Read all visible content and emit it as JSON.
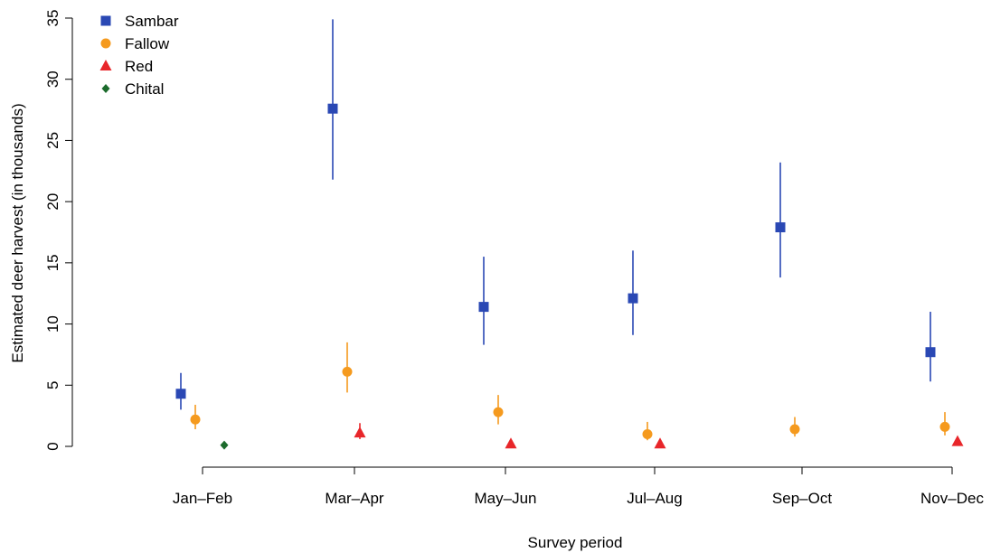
{
  "chart_data": {
    "type": "scatter",
    "title": "",
    "xlabel": "Survey period",
    "ylabel": "Estimated deer harvest (in thousands)",
    "ylim": [
      0,
      35
    ],
    "yticks": [
      "0",
      "5",
      "10",
      "15",
      "20",
      "25",
      "30",
      "35"
    ],
    "categories": [
      "Jan–Feb",
      "Mar–Apr",
      "May–Jun",
      "Jul–Aug",
      "Sep–Oct",
      "Nov–Dec"
    ],
    "grid": false,
    "legend_position": "top-left",
    "error_bars": true,
    "series": [
      {
        "name": "Sambar",
        "color": "#2a48b4",
        "marker": "square",
        "points": [
          {
            "category": "Jan–Feb",
            "value": 4.3,
            "low": 3.0,
            "high": 6.0
          },
          {
            "category": "Mar–Apr",
            "value": 27.6,
            "low": 21.8,
            "high": 34.9
          },
          {
            "category": "May–Jun",
            "value": 11.4,
            "low": 8.3,
            "high": 15.5
          },
          {
            "category": "Jul–Aug",
            "value": 12.1,
            "low": 9.1,
            "high": 16.0
          },
          {
            "category": "Sep–Oct",
            "value": 17.9,
            "low": 13.8,
            "high": 23.2
          },
          {
            "category": "Nov–Dec",
            "value": 7.7,
            "low": 5.3,
            "high": 11.0
          }
        ]
      },
      {
        "name": "Fallow",
        "color": "#f59a1e",
        "marker": "circle",
        "points": [
          {
            "category": "Jan–Feb",
            "value": 2.2,
            "low": 1.4,
            "high": 3.4
          },
          {
            "category": "Mar–Apr",
            "value": 6.1,
            "low": 4.4,
            "high": 8.5
          },
          {
            "category": "May–Jun",
            "value": 2.8,
            "low": 1.8,
            "high": 4.2
          },
          {
            "category": "Jul–Aug",
            "value": 1.0,
            "low": 0.5,
            "high": 2.0
          },
          {
            "category": "Sep–Oct",
            "value": 1.4,
            "low": 0.8,
            "high": 2.4
          },
          {
            "category": "Nov–Dec",
            "value": 1.6,
            "low": 0.9,
            "high": 2.8
          }
        ]
      },
      {
        "name": "Red",
        "color": "#e8262a",
        "marker": "triangle",
        "points": [
          {
            "category": "Mar–Apr",
            "value": 1.1,
            "low": 0.6,
            "high": 1.9
          },
          {
            "category": "May–Jun",
            "value": 0.2,
            "low": 0.1,
            "high": 0.4
          },
          {
            "category": "Jul–Aug",
            "value": 0.2,
            "low": 0.1,
            "high": 0.4
          },
          {
            "category": "Nov–Dec",
            "value": 0.4,
            "low": 0.2,
            "high": 0.7
          }
        ]
      },
      {
        "name": "Chital",
        "color": "#1c6b2c",
        "marker": "diamond",
        "points": [
          {
            "category": "Jan–Feb",
            "value": 0.1,
            "low": 0.05,
            "high": 0.2
          }
        ]
      }
    ]
  }
}
